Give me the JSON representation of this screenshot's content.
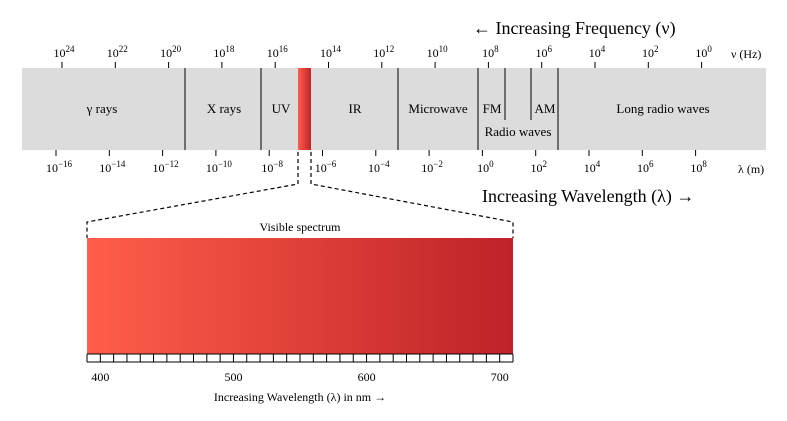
{
  "frequency_arrow": "← Increasing Frequency (ν)",
  "wavelength_arrow": "Increasing Wavelength (λ) →",
  "frequency_axis": {
    "unit": "ν (Hz)",
    "ticks": [
      {
        "base": "10",
        "exp": "24"
      },
      {
        "base": "10",
        "exp": "22"
      },
      {
        "base": "10",
        "exp": "20"
      },
      {
        "base": "10",
        "exp": "18"
      },
      {
        "base": "10",
        "exp": "16"
      },
      {
        "base": "10",
        "exp": "14"
      },
      {
        "base": "10",
        "exp": "12"
      },
      {
        "base": "10",
        "exp": "10"
      },
      {
        "base": "10",
        "exp": "8"
      },
      {
        "base": "10",
        "exp": "6"
      },
      {
        "base": "10",
        "exp": "4"
      },
      {
        "base": "10",
        "exp": "2"
      },
      {
        "base": "10",
        "exp": "0"
      }
    ]
  },
  "wavelength_axis": {
    "unit": "λ (m)",
    "ticks": [
      {
        "base": "10",
        "exp": "−16"
      },
      {
        "base": "10",
        "exp": "−14"
      },
      {
        "base": "10",
        "exp": "−12"
      },
      {
        "base": "10",
        "exp": "−10"
      },
      {
        "base": "10",
        "exp": "−8"
      },
      {
        "base": "10",
        "exp": "−6"
      },
      {
        "base": "10",
        "exp": "−4"
      },
      {
        "base": "10",
        "exp": "−2"
      },
      {
        "base": "10",
        "exp": "0"
      },
      {
        "base": "10",
        "exp": "2"
      },
      {
        "base": "10",
        "exp": "4"
      },
      {
        "base": "10",
        "exp": "6"
      },
      {
        "base": "10",
        "exp": "8"
      }
    ]
  },
  "regions": {
    "gamma": "γ rays",
    "xray": "X rays",
    "uv": "UV",
    "ir": "IR",
    "microwave": "Microwave",
    "fm": "FM",
    "am": "AM",
    "radio": "Radio waves",
    "long_radio": "Long radio waves"
  },
  "visible": {
    "title": "Visible spectrum",
    "axis_title": "Increasing Wavelength (λ) in nm →",
    "tick_labels": [
      "400",
      "500",
      "600",
      "700"
    ]
  },
  "colors": {
    "band": "#dcdcdc",
    "visible_start": "#ff5e4a",
    "visible_end": "#bf2228"
  }
}
